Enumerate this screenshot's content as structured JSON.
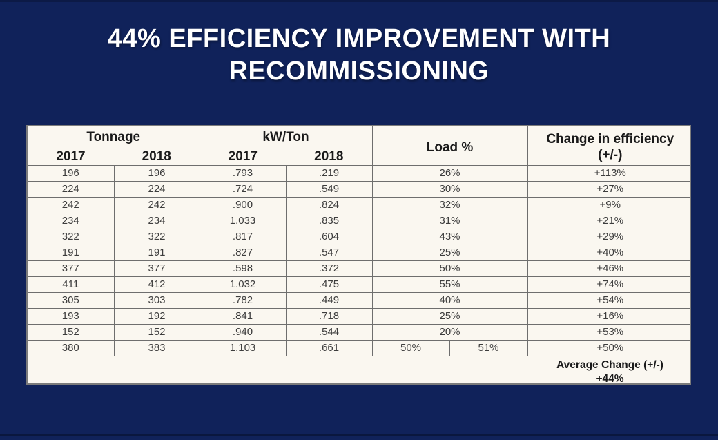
{
  "colors": {
    "background": "#10225A",
    "bottom_accent_line": "#0A173E",
    "table_background": "#FAF7F0",
    "table_outer_border": "#7B7B7B",
    "table_grid_line": "#6E6E6E",
    "title_text": "#FFFFFF",
    "header_text": "#1A1A1A",
    "data_text": "#3D3D3D"
  },
  "title": {
    "line1": "44% EFFICIENCY IMPROVEMENT WITH",
    "line2": "RECOMMISSIONING"
  },
  "table": {
    "groups": [
      {
        "label": "Tonnage",
        "sub": [
          "2017",
          "2018"
        ]
      },
      {
        "label": "kW/Ton",
        "sub": [
          "2017",
          "2018"
        ]
      },
      {
        "label": "Load %"
      },
      {
        "label": "Change in efficiency",
        "label2": "(+/-)"
      }
    ],
    "footer": {
      "label": "Average Change (+/-)",
      "value": "+44%"
    }
  },
  "chart_data": {
    "type": "table",
    "title": "44% EFFICIENCY IMPROVEMENT WITH RECOMMISSIONING",
    "columns": [
      "Tonnage 2017",
      "Tonnage 2018",
      "kW/Ton 2017",
      "kW/Ton 2018",
      "Load %",
      "Change in efficiency (+/-)"
    ],
    "rows": [
      [
        "196",
        "196",
        ".793",
        ".219",
        "26%",
        "+113%"
      ],
      [
        "224",
        "224",
        ".724",
        ".549",
        "30%",
        "+27%"
      ],
      [
        "242",
        "242",
        ".900",
        ".824",
        "32%",
        "+9%"
      ],
      [
        "234",
        "234",
        "1.033",
        ".835",
        "31%",
        "+21%"
      ],
      [
        "322",
        "322",
        ".817",
        ".604",
        "43%",
        "+29%"
      ],
      [
        "191",
        "191",
        ".827",
        ".547",
        "25%",
        "+40%"
      ],
      [
        "377",
        "377",
        ".598",
        ".372",
        "50%",
        "+46%"
      ],
      [
        "411",
        "412",
        "1.032",
        ".475",
        "55%",
        "+74%"
      ],
      [
        "305",
        "303",
        ".782",
        ".449",
        "40%",
        "+54%"
      ],
      [
        "193",
        "192",
        ".841",
        ".718",
        "25%",
        "+16%"
      ],
      [
        "152",
        "152",
        ".940",
        ".544",
        "20%",
        "+53%"
      ],
      [
        "380",
        "383",
        "1.103",
        ".661",
        [
          "50%",
          "51%"
        ],
        "+50%"
      ]
    ],
    "summary": {
      "label": "Average Change (+/-)",
      "value": "+44%"
    }
  }
}
